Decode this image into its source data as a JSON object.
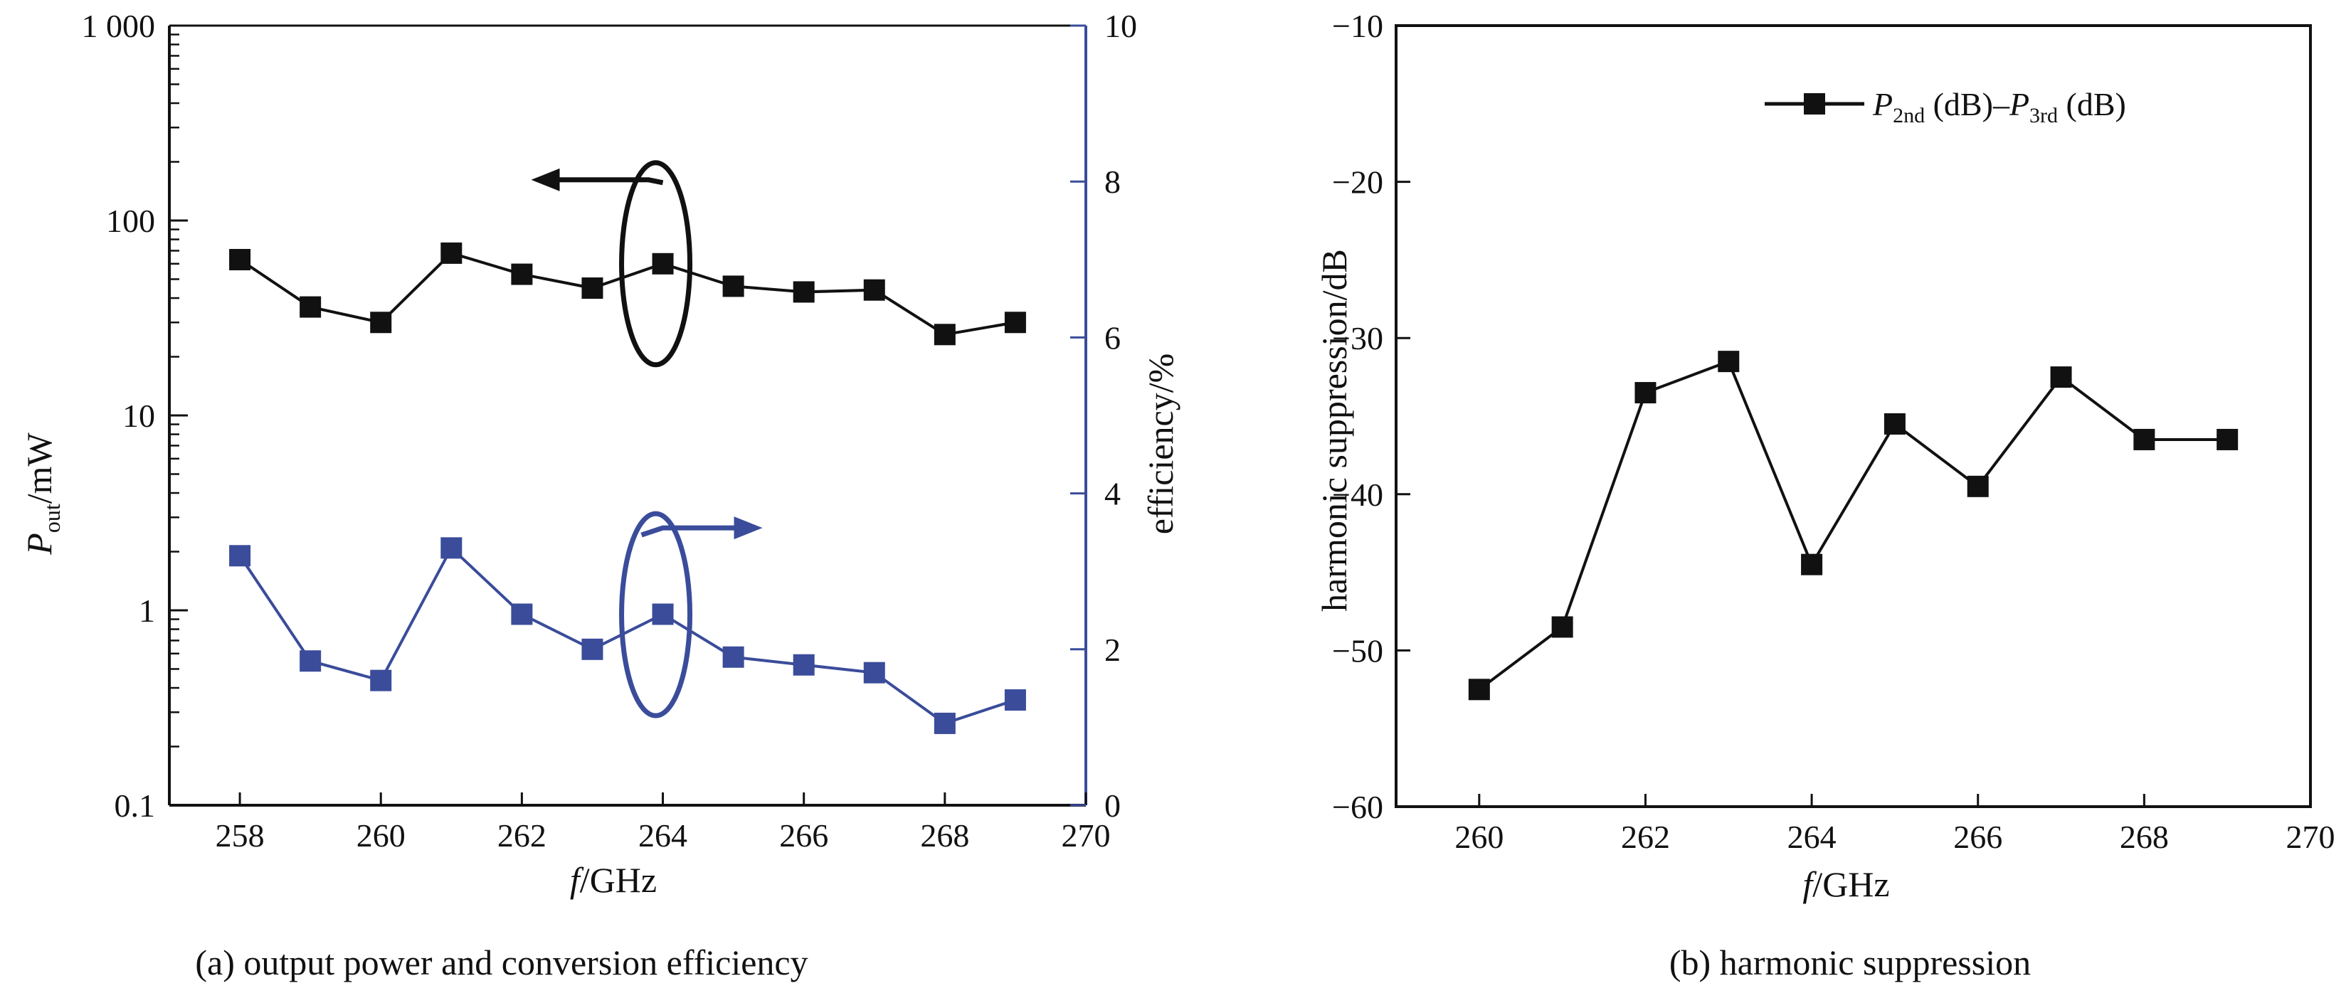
{
  "chart_data": [
    {
      "type": "line",
      "caption": "(a) output power and conversion efficiency",
      "xlabel": "GHz",
      "xlabel_prefix": "f",
      "xlim": [
        257,
        270
      ],
      "xticks": [
        258,
        260,
        262,
        264,
        266,
        268,
        270
      ],
      "ylabel_left": {
        "symbol": "P",
        "sub": "out",
        "rest": "/mW"
      },
      "yscale_left": "log",
      "ylim_left": [
        0.1,
        1000
      ],
      "yticks_left": [
        0.1,
        1,
        10,
        100,
        1000
      ],
      "yticklabels_left": [
        "0.1",
        "1",
        "10",
        "100",
        "1 000"
      ],
      "ylabel_right": "efficiency/%",
      "ylim_right": [
        0,
        10
      ],
      "yticks_right": [
        0,
        2,
        4,
        6,
        8,
        10
      ],
      "x": [
        258,
        259,
        260,
        261,
        262,
        263,
        264,
        265,
        266,
        267,
        268,
        269
      ],
      "series": [
        {
          "axis": "left",
          "color": "#111111",
          "values": [
            63,
            36,
            30,
            68,
            53,
            45,
            60,
            46,
            43,
            44,
            26,
            30
          ]
        },
        {
          "axis": "right",
          "color": "#3a4c9a",
          "values": [
            3.2,
            1.85,
            1.6,
            3.3,
            2.45,
            2.0,
            2.45,
            1.9,
            1.8,
            1.7,
            1.05,
            1.35
          ]
        }
      ],
      "annotations": [
        {
          "kind": "ellipse-arrow",
          "color": "#111111",
          "points_to": "left",
          "anchor_x": 264,
          "anchor_y": 60
        },
        {
          "kind": "ellipse-arrow",
          "color": "#3a4c9a",
          "points_to": "right",
          "anchor_x": 264,
          "anchor_y": 0.95
        }
      ]
    },
    {
      "type": "line",
      "caption": "(b)  harmonic suppression",
      "xlabel": "GHz",
      "xlabel_prefix": "f",
      "xlim": [
        259,
        270
      ],
      "xticks": [
        260,
        262,
        264,
        266,
        268,
        270
      ],
      "ylabel": "harmonic suppression/dB",
      "ylim": [
        -60,
        -10
      ],
      "yticks": [
        -60,
        -50,
        -40,
        -30,
        -20,
        -10
      ],
      "yticklabels": [
        "−60",
        "−50",
        "−40",
        "−30",
        "−20",
        "−10"
      ],
      "x": [
        260,
        261,
        262,
        263,
        264,
        265,
        266,
        267,
        268,
        269
      ],
      "series": [
        {
          "color": "#111111",
          "values": [
            -52.5,
            -48.5,
            -33.5,
            -31.5,
            -44.5,
            -35.5,
            -39.5,
            -32.5,
            -36.5,
            -36.5
          ]
        }
      ],
      "legend": {
        "position": "top-right",
        "p1": "P",
        "p1_sub": "2nd",
        "p1_unit": "(dB)",
        "dash": "–",
        "p2": "P",
        "p2_sub": "3rd",
        "p2_unit": "(dB)"
      }
    }
  ]
}
